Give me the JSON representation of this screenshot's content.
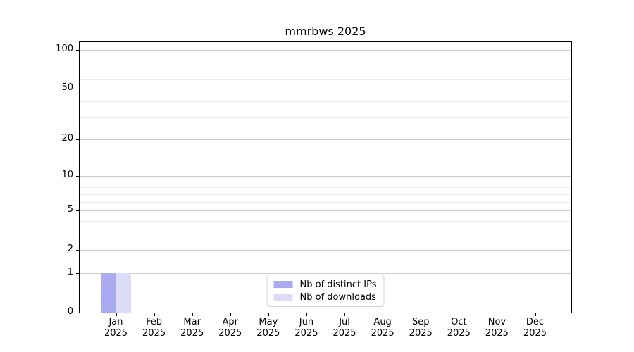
{
  "figure": {
    "background": "#ffffff",
    "title": "mmrbws 2025"
  },
  "chart_data": {
    "type": "bar",
    "title": "mmrbws 2025",
    "categories": [
      "Jan 2025",
      "Feb 2025",
      "Mar 2025",
      "Apr 2025",
      "May 2025",
      "Jun 2025",
      "Jul 2025",
      "Aug 2025",
      "Sep 2025",
      "Oct 2025",
      "Nov 2025",
      "Dec 2025"
    ],
    "month_labels": [
      "Jan",
      "Feb",
      "Mar",
      "Apr",
      "May",
      "Jun",
      "Jul",
      "Aug",
      "Sep",
      "Oct",
      "Nov",
      "Dec"
    ],
    "year_label": "2025",
    "series": [
      {
        "name": "Nb of distinct IPs",
        "color": "#aaaaf0",
        "values": [
          1,
          0,
          0,
          0,
          0,
          0,
          0,
          0,
          0,
          0,
          0,
          0
        ]
      },
      {
        "name": "Nb of downloads",
        "color": "#dcdcf8",
        "values": [
          1,
          0,
          0,
          0,
          0,
          0,
          0,
          0,
          0,
          0,
          0,
          0
        ]
      }
    ],
    "xlabel": "",
    "ylabel": "",
    "yscale": "log1p",
    "ylim": [
      0,
      116
    ],
    "yticks": [
      0,
      1,
      2,
      5,
      10,
      20,
      50,
      100
    ],
    "minor_yticks": [
      3,
      4,
      6,
      7,
      8,
      9,
      30,
      40,
      60,
      70,
      80,
      90
    ],
    "grid": "horizontal",
    "legend": {
      "position": "lower center",
      "entries": [
        "Nb of distinct IPs",
        "Nb of downloads"
      ]
    }
  },
  "colors": {
    "axis": "#000000",
    "major_grid": "#cbcbcb",
    "minor_grid": "#ebebeb",
    "legend_border": "#d4d4d4",
    "bar_distinct_ips": "#aaaaf0",
    "bar_downloads": "#dcdcf8"
  }
}
